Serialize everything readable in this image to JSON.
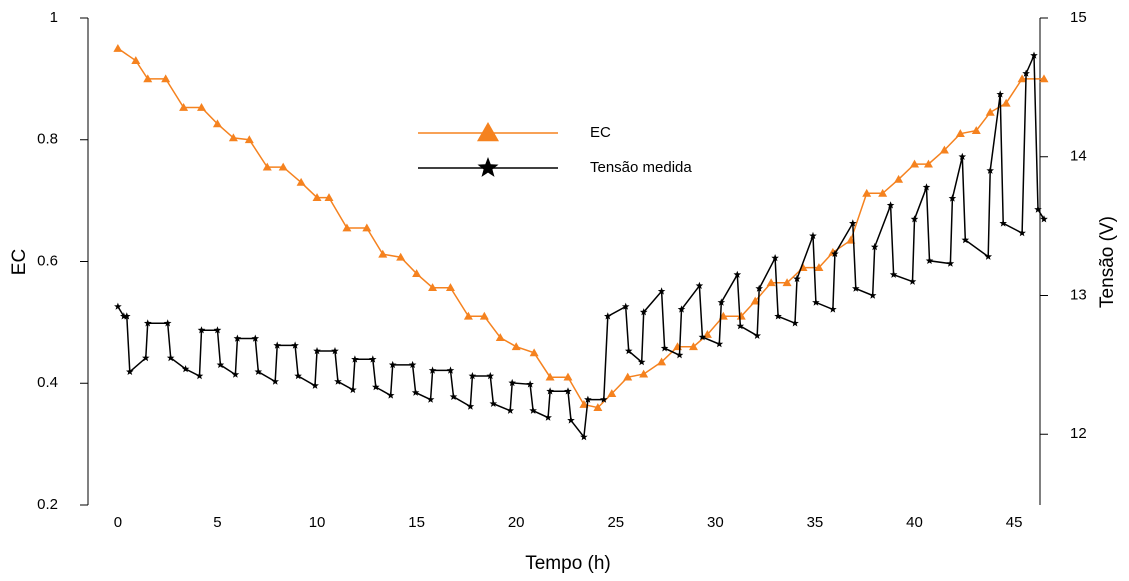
{
  "chart_data": {
    "type": "line",
    "xlabel": "Tempo (h)",
    "ylabel": "EC",
    "y2label": "Tensão (V)",
    "xlim": [
      -1.5,
      46.3
    ],
    "xticks": [
      0,
      5,
      10,
      15,
      20,
      25,
      30,
      35,
      40,
      45
    ],
    "ylim": [
      0.2,
      1
    ],
    "yticks": [
      0.2,
      0.4,
      0.6,
      0.8,
      1
    ],
    "y2lim": [
      11.49,
      15
    ],
    "y2ticks": [
      12,
      13,
      14,
      15
    ],
    "series": [
      {
        "name": "EC",
        "color": "#f5821f",
        "marker": "triangle",
        "axis": "y",
        "x": [
          0,
          0.9,
          1.5,
          2.4,
          3.3,
          4.2,
          5.0,
          5.8,
          6.6,
          7.5,
          8.3,
          9.2,
          10.0,
          10.6,
          11.5,
          12.5,
          13.3,
          14.2,
          15.0,
          15.8,
          16.7,
          17.6,
          18.4,
          19.2,
          20.0,
          20.9,
          21.7,
          22.6,
          23.4,
          24.1,
          24.8,
          25.6,
          26.4,
          27.3,
          28.1,
          28.9,
          29.6,
          30.4,
          31.3,
          32.0,
          32.8,
          33.6,
          34.4,
          35.2,
          35.9,
          36.8,
          37.6,
          38.4,
          39.2,
          40.0,
          40.7,
          41.5,
          42.3,
          43.1,
          43.8,
          44.6,
          45.4,
          46.5
        ],
        "values": [
          0.95,
          0.93,
          0.9,
          0.9,
          0.853,
          0.853,
          0.826,
          0.803,
          0.8,
          0.755,
          0.755,
          0.73,
          0.705,
          0.705,
          0.655,
          0.655,
          0.612,
          0.607,
          0.58,
          0.557,
          0.557,
          0.51,
          0.51,
          0.475,
          0.46,
          0.45,
          0.41,
          0.41,
          0.365,
          0.36,
          0.383,
          0.41,
          0.415,
          0.435,
          0.46,
          0.46,
          0.48,
          0.51,
          0.51,
          0.535,
          0.565,
          0.565,
          0.59,
          0.59,
          0.615,
          0.635,
          0.712,
          0.712,
          0.735,
          0.76,
          0.76,
          0.783,
          0.81,
          0.815,
          0.845,
          0.86,
          0.9,
          0.9
        ]
      },
      {
        "name": "Tensão medida",
        "color": "#000000",
        "marker": "star",
        "axis": "y2",
        "x": [
          0,
          0.3,
          0.45,
          0.6,
          1.4,
          1.5,
          2.5,
          2.65,
          3.4,
          4.1,
          4.2,
          5.0,
          5.15,
          5.9,
          6.0,
          6.9,
          7.05,
          7.9,
          8.0,
          8.9,
          9.05,
          9.9,
          10.0,
          10.9,
          11.05,
          11.8,
          11.9,
          12.8,
          12.95,
          13.7,
          13.8,
          14.8,
          14.95,
          15.7,
          15.8,
          16.7,
          16.85,
          17.7,
          17.8,
          18.7,
          18.85,
          19.7,
          19.8,
          20.7,
          20.85,
          21.6,
          21.7,
          22.6,
          22.75,
          23.4,
          23.6,
          24.4,
          24.6,
          25.5,
          25.65,
          26.3,
          26.4,
          27.3,
          27.45,
          28.2,
          28.3,
          29.2,
          29.35,
          30.2,
          30.3,
          31.1,
          31.25,
          32.1,
          32.2,
          33.0,
          33.15,
          34.0,
          34.1,
          34.9,
          35.05,
          35.9,
          36.0,
          36.9,
          37.05,
          37.9,
          38.0,
          38.8,
          38.95,
          39.9,
          40.0,
          40.6,
          40.75,
          41.8,
          41.9,
          42.4,
          42.55,
          43.7,
          43.8,
          44.3,
          44.45,
          45.4,
          45.6,
          46.0,
          46.2,
          46.5
        ],
        "values": [
          12.92,
          12.85,
          12.85,
          12.45,
          12.55,
          12.8,
          12.8,
          12.55,
          12.47,
          12.42,
          12.75,
          12.75,
          12.5,
          12.43,
          12.69,
          12.69,
          12.45,
          12.38,
          12.64,
          12.64,
          12.42,
          12.35,
          12.6,
          12.6,
          12.38,
          12.32,
          12.54,
          12.54,
          12.34,
          12.28,
          12.5,
          12.5,
          12.3,
          12.25,
          12.46,
          12.46,
          12.27,
          12.2,
          12.42,
          12.42,
          12.22,
          12.17,
          12.37,
          12.36,
          12.17,
          12.12,
          12.31,
          12.31,
          12.1,
          11.98,
          12.25,
          12.25,
          12.85,
          12.92,
          12.6,
          12.52,
          12.88,
          13.03,
          12.62,
          12.57,
          12.9,
          13.07,
          12.7,
          12.65,
          12.95,
          13.15,
          12.78,
          12.71,
          13.05,
          13.27,
          12.85,
          12.8,
          13.12,
          13.43,
          12.95,
          12.9,
          13.3,
          13.52,
          13.05,
          13.0,
          13.35,
          13.65,
          13.15,
          13.1,
          13.55,
          13.78,
          13.25,
          13.23,
          13.7,
          14.0,
          13.4,
          13.28,
          13.9,
          14.45,
          13.52,
          13.45,
          14.6,
          14.73,
          13.62,
          13.55
        ]
      }
    ]
  }
}
